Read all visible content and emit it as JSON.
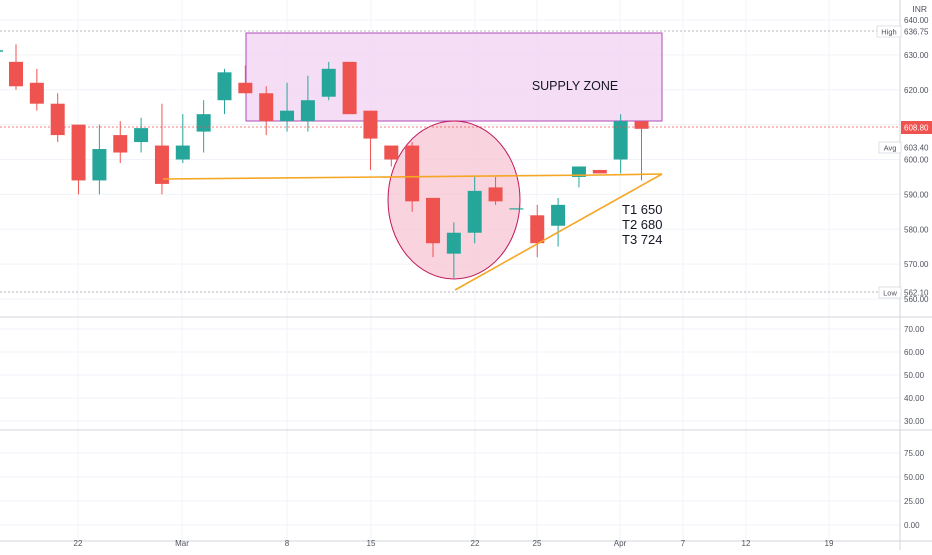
{
  "currency": "INR",
  "colors": {
    "up": "#26a69a",
    "down": "#ef5350",
    "supply_zone_fill": "#f3d7f5",
    "supply_zone_border": "#b04ab8",
    "circle_fill": "#f8c8d6",
    "circle_border": "#c2185b",
    "trendline": "#f5a623",
    "grid": "#f0f3fa",
    "axis_text": "#50535e"
  },
  "annotations": {
    "supply_zone_label": "SUPPLY ZONE",
    "targets": [
      "T1 650",
      "T2 680",
      "T3 724"
    ]
  },
  "price_tags": {
    "high_label": "High",
    "high_value": "636.75",
    "avg_label": "Avg",
    "avg_value": "603.40",
    "last_value": "608.80",
    "low_label": "Low",
    "low_value": "562.10"
  },
  "chart_data": {
    "type": "candlestick",
    "y_axis_main": {
      "range": [
        556,
        643
      ],
      "ticks": [
        "640.00",
        "630.00",
        "620.00",
        "610.00",
        "600.00",
        "590.00",
        "580.00",
        "570.00",
        "560.00"
      ]
    },
    "y_axis_panel2": {
      "range": [
        24,
        82
      ],
      "ticks": [
        "70.00",
        "60.00",
        "50.00",
        "40.00",
        "30.00"
      ]
    },
    "y_axis_panel3": {
      "range": [
        -3,
        92
      ],
      "ticks": [
        "75.00",
        "50.00",
        "25.00",
        "0.00"
      ]
    },
    "x_ticks": [
      "22",
      "Mar",
      "8",
      "15",
      "22",
      "25",
      "Apr",
      "7",
      "12",
      "19"
    ],
    "candles": [
      {
        "o": 628,
        "h": 633,
        "l": 620,
        "c": 621
      },
      {
        "o": 622,
        "h": 626,
        "l": 614,
        "c": 616
      },
      {
        "o": 616,
        "h": 619,
        "l": 605,
        "c": 607
      },
      {
        "o": 610,
        "h": 610,
        "l": 590,
        "c": 594
      },
      {
        "o": 594,
        "h": 610,
        "l": 590,
        "c": 603
      },
      {
        "o": 607,
        "h": 611,
        "l": 599,
        "c": 602
      },
      {
        "o": 605,
        "h": 612,
        "l": 602,
        "c": 609
      },
      {
        "o": 604,
        "h": 616,
        "l": 590,
        "c": 593
      },
      {
        "o": 600,
        "h": 613,
        "l": 599,
        "c": 604
      },
      {
        "o": 608,
        "h": 617,
        "l": 602,
        "c": 613
      },
      {
        "o": 617,
        "h": 626,
        "l": 613,
        "c": 625
      },
      {
        "o": 622,
        "h": 627,
        "l": 619,
        "c": 619
      },
      {
        "o": 619,
        "h": 621,
        "l": 607,
        "c": 611
      },
      {
        "o": 611,
        "h": 622,
        "l": 608,
        "c": 614
      },
      {
        "o": 611,
        "h": 624,
        "l": 608,
        "c": 617
      },
      {
        "o": 618,
        "h": 628,
        "l": 617,
        "c": 626
      },
      {
        "o": 628,
        "h": 628,
        "l": 613,
        "c": 613
      },
      {
        "o": 614,
        "h": 614,
        "l": 597,
        "c": 606
      },
      {
        "o": 604,
        "h": 604,
        "l": 598,
        "c": 600
      },
      {
        "o": 604,
        "h": 605,
        "l": 585,
        "c": 588
      },
      {
        "o": 589,
        "h": 589,
        "l": 572,
        "c": 576
      },
      {
        "o": 573,
        "h": 582,
        "l": 566,
        "c": 579
      },
      {
        "o": 579,
        "h": 595,
        "l": 576,
        "c": 591
      },
      {
        "o": 592,
        "h": 595,
        "l": 587,
        "c": 588
      },
      {
        "o": 586,
        "h": 586,
        "l": 586,
        "c": 586
      },
      {
        "o": 584,
        "h": 587,
        "l": 572,
        "c": 576
      },
      {
        "o": 581,
        "h": 589,
        "l": 575,
        "c": 587
      },
      {
        "o": 595,
        "h": 598,
        "l": 592,
        "c": 598
      },
      {
        "o": 597,
        "h": 597,
        "l": 596,
        "c": 596
      },
      {
        "o": 600,
        "h": 613,
        "l": 596,
        "c": 611
      },
      {
        "o": 611,
        "h": 611,
        "l": 594,
        "c": 608.8
      }
    ]
  }
}
